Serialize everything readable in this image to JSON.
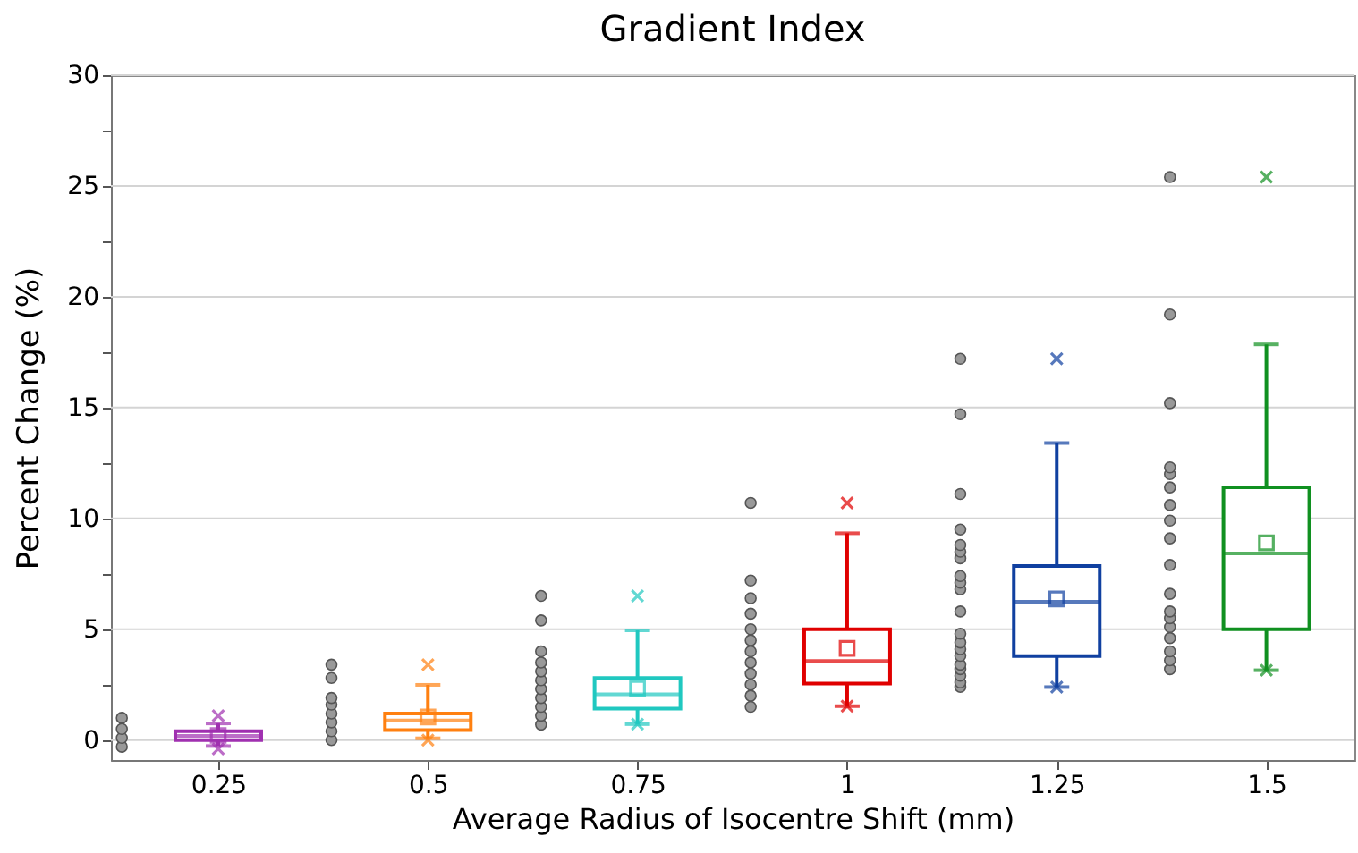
{
  "chart_data": {
    "type": "box",
    "title": "Gradient Index",
    "xlabel": "Average Radius of Isocentre Shift (mm)",
    "ylabel": "Percent Change (%)",
    "x": [
      0.25,
      0.5,
      0.75,
      1,
      1.25,
      1.5
    ],
    "xlim": [
      0.122,
      1.605
    ],
    "xticks": [
      0.25,
      0.5,
      0.75,
      1,
      1.25,
      1.5
    ],
    "colors": [
      "#a030b0",
      "#ff8010",
      "#20c8c0",
      "#e00000",
      "#1040a0",
      "#109020"
    ],
    "boxes": [
      {
        "low": -0.27,
        "q1": 0.0,
        "median": 0.19,
        "q3": 0.4,
        "high": 0.75,
        "mean": 0.21,
        "outliers": [
          1.1,
          -0.4
        ]
      },
      {
        "low": 0.08,
        "q1": 0.45,
        "median": 0.88,
        "q3": 1.2,
        "high": 2.49,
        "mean": 1.04,
        "outliers": [
          3.4,
          0.0
        ]
      },
      {
        "low": 0.72,
        "q1": 1.42,
        "median": 2.06,
        "q3": 2.8,
        "high": 4.95,
        "mean": 2.33,
        "outliers": [
          6.5,
          0.72
        ]
      },
      {
        "low": 1.53,
        "q1": 2.55,
        "median": 3.57,
        "q3": 5.0,
        "high": 9.33,
        "mean": 4.14,
        "outliers": [
          10.7,
          1.53
        ]
      },
      {
        "low": 2.39,
        "q1": 3.79,
        "median": 6.24,
        "q3": 7.85,
        "high": 13.4,
        "mean": 6.37,
        "outliers": [
          17.2,
          2.39
        ]
      },
      {
        "low": 3.15,
        "q1": 5.0,
        "median": 8.42,
        "q3": 11.4,
        "high": 17.85,
        "mean": 8.9,
        "outliers": [
          25.4,
          3.15
        ]
      }
    ],
    "series": [
      {
        "type": "scatter",
        "color": "#999999",
        "x": [
          0.135,
          0.135,
          0.135,
          0.135,
          0.385,
          0.385,
          0.385,
          0.385,
          0.385,
          0.385,
          0.385,
          0.385,
          0.635,
          0.635,
          0.635,
          0.635,
          0.635,
          0.635,
          0.635,
          0.635,
          0.635,
          0.635,
          0.635,
          0.885,
          0.885,
          0.885,
          0.885,
          0.885,
          0.885,
          0.885,
          0.885,
          0.885,
          0.885,
          0.885,
          0.885,
          1.135,
          1.135,
          1.135,
          1.135,
          1.135,
          1.135,
          1.135,
          1.135,
          1.135,
          1.135,
          1.135,
          1.135,
          1.135,
          1.135,
          1.135,
          1.135,
          1.135,
          1.135,
          1.135,
          1.135,
          1.385,
          1.385,
          1.385,
          1.385,
          1.385,
          1.385,
          1.385,
          1.385,
          1.385,
          1.385,
          1.385,
          1.385,
          1.385,
          1.385,
          1.385,
          1.385,
          1.385,
          1.385
        ],
        "values": [
          -0.3,
          0.1,
          0.5,
          1.0,
          0,
          0.4,
          0.8,
          1.2,
          1.6,
          1.9,
          2.8,
          3.4,
          0.7,
          1.1,
          1.5,
          1.9,
          2.3,
          2.7,
          3.1,
          3.5,
          4.0,
          5.4,
          6.5,
          1.5,
          2.0,
          2.5,
          3.0,
          3.5,
          4.0,
          4.5,
          5.0,
          5.7,
          6.4,
          7.2,
          10.7,
          2.4,
          2.6,
          2.9,
          3.2,
          3.4,
          3.8,
          4.1,
          4.4,
          4.8,
          5.8,
          6.8,
          7.1,
          7.4,
          8.2,
          8.5,
          8.8,
          9.5,
          11.1,
          14.7,
          17.2,
          3.2,
          3.6,
          4.0,
          4.6,
          5.1,
          5.5,
          5.8,
          6.6,
          7.9,
          9.1,
          9.9,
          10.6,
          11.4,
          12.0,
          12.3,
          15.2,
          19.2,
          25.4
        ]
      }
    ],
    "ylim": [
      -0.9,
      30
    ],
    "yticks": [
      0,
      {
        "value": 2.5,
        "label": null
      },
      5,
      {
        "value": 7.5,
        "label": null
      },
      10,
      {
        "value": 12.5,
        "label": null
      },
      15,
      {
        "value": 17.5,
        "label": null
      },
      20,
      {
        "value": 22.5,
        "label": null
      },
      25,
      {
        "value": 27.5,
        "label": null
      },
      30
    ],
    "grid": "y"
  }
}
